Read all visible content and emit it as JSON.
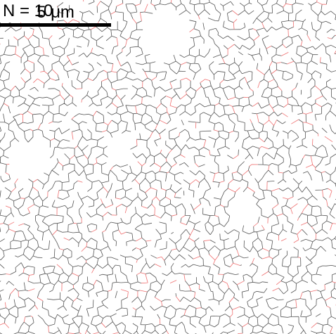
{
  "labels": {
    "sample": "N = 10",
    "scale_bar": "5 μm"
  }
}
